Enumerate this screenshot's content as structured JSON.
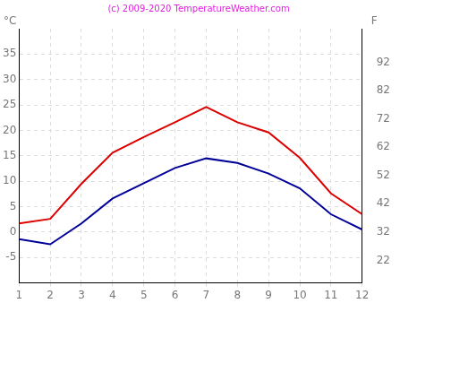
{
  "chart_data": {
    "type": "line",
    "title": "(c) 2009-2020 TemperatureWeather.com",
    "y_label": "°C",
    "y2_label": "F",
    "x": [
      1,
      2,
      3,
      4,
      5,
      6,
      7,
      8,
      9,
      10,
      11,
      12
    ],
    "series": [
      {
        "color": "#dd0000",
        "values": [
          1.7,
          2.6,
          9.5,
          15.6,
          18.7,
          21.6,
          24.6,
          21.6,
          19.6,
          14.6,
          7.6,
          3.5
        ]
      },
      {
        "color": "#000099",
        "values": [
          -1.4,
          -2.4,
          1.7,
          6.6,
          9.6,
          12.6,
          14.5,
          13.6,
          11.5,
          8.6,
          3.5,
          0.5
        ]
      }
    ],
    "xlim": [
      1,
      12
    ],
    "xticks": [
      1,
      2,
      3,
      4,
      5,
      6,
      7,
      8,
      9,
      10,
      11,
      12
    ],
    "ylim": [
      -10,
      40
    ],
    "yticks": [
      -5,
      0,
      5,
      10,
      15,
      20,
      25,
      30,
      35
    ],
    "y2lim": [
      14,
      104
    ],
    "y2ticks": [
      22,
      32,
      42,
      52,
      62,
      72,
      82,
      92
    ],
    "grid": true
  }
}
